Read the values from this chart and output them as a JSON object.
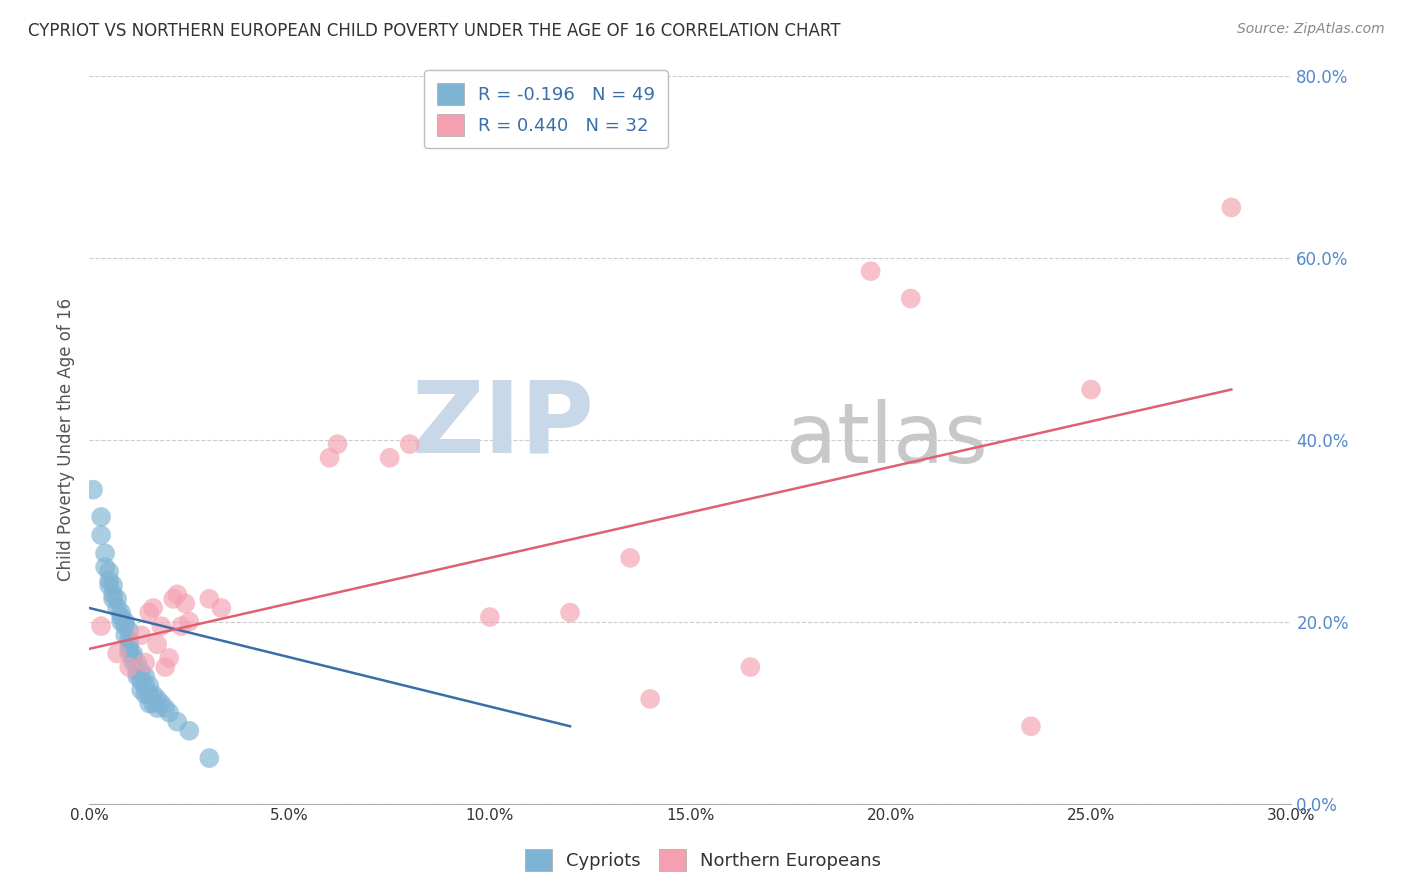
{
  "title": "CYPRIOT VS NORTHERN EUROPEAN CHILD POVERTY UNDER THE AGE OF 16 CORRELATION CHART",
  "source": "Source: ZipAtlas.com",
  "ylabel": "Child Poverty Under the Age of 16",
  "xlim": [
    0.0,
    0.3
  ],
  "ylim": [
    0.0,
    0.8
  ],
  "xticks": [
    0.0,
    0.05,
    0.1,
    0.15,
    0.2,
    0.25,
    0.3
  ],
  "yticks": [
    0.0,
    0.2,
    0.4,
    0.6,
    0.8
  ],
  "xtick_labels": [
    "0.0%",
    "5.0%",
    "10.0%",
    "15.0%",
    "20.0%",
    "25.0%",
    "30.0%"
  ],
  "ytick_labels": [
    "0.0%",
    "20.0%",
    "40.0%",
    "60.0%",
    "80.0%"
  ],
  "legend_entries": [
    {
      "label": "R = -0.196   N = 49",
      "color": "#aac4e0"
    },
    {
      "label": "R = 0.440   N = 32",
      "color": "#f4a8b8"
    }
  ],
  "blue_scatter": [
    [
      0.001,
      0.345
    ],
    [
      0.003,
      0.315
    ],
    [
      0.003,
      0.295
    ],
    [
      0.004,
      0.275
    ],
    [
      0.004,
      0.26
    ],
    [
      0.005,
      0.255
    ],
    [
      0.005,
      0.245
    ],
    [
      0.005,
      0.24
    ],
    [
      0.006,
      0.24
    ],
    [
      0.006,
      0.23
    ],
    [
      0.006,
      0.225
    ],
    [
      0.007,
      0.225
    ],
    [
      0.007,
      0.215
    ],
    [
      0.008,
      0.21
    ],
    [
      0.008,
      0.205
    ],
    [
      0.008,
      0.2
    ],
    [
      0.009,
      0.2
    ],
    [
      0.009,
      0.195
    ],
    [
      0.009,
      0.185
    ],
    [
      0.01,
      0.19
    ],
    [
      0.01,
      0.18
    ],
    [
      0.01,
      0.175
    ],
    [
      0.01,
      0.17
    ],
    [
      0.01,
      0.165
    ],
    [
      0.011,
      0.165
    ],
    [
      0.011,
      0.16
    ],
    [
      0.011,
      0.155
    ],
    [
      0.012,
      0.155
    ],
    [
      0.012,
      0.145
    ],
    [
      0.012,
      0.14
    ],
    [
      0.013,
      0.145
    ],
    [
      0.013,
      0.135
    ],
    [
      0.013,
      0.125
    ],
    [
      0.014,
      0.14
    ],
    [
      0.014,
      0.13
    ],
    [
      0.014,
      0.12
    ],
    [
      0.015,
      0.13
    ],
    [
      0.015,
      0.12
    ],
    [
      0.015,
      0.11
    ],
    [
      0.016,
      0.12
    ],
    [
      0.016,
      0.11
    ],
    [
      0.017,
      0.115
    ],
    [
      0.017,
      0.105
    ],
    [
      0.018,
      0.11
    ],
    [
      0.019,
      0.105
    ],
    [
      0.02,
      0.1
    ],
    [
      0.022,
      0.09
    ],
    [
      0.025,
      0.08
    ],
    [
      0.03,
      0.05
    ]
  ],
  "pink_scatter": [
    [
      0.003,
      0.195
    ],
    [
      0.007,
      0.165
    ],
    [
      0.01,
      0.15
    ],
    [
      0.013,
      0.185
    ],
    [
      0.014,
      0.155
    ],
    [
      0.015,
      0.21
    ],
    [
      0.016,
      0.215
    ],
    [
      0.017,
      0.175
    ],
    [
      0.018,
      0.195
    ],
    [
      0.019,
      0.15
    ],
    [
      0.02,
      0.16
    ],
    [
      0.021,
      0.225
    ],
    [
      0.022,
      0.23
    ],
    [
      0.023,
      0.195
    ],
    [
      0.024,
      0.22
    ],
    [
      0.025,
      0.2
    ],
    [
      0.03,
      0.225
    ],
    [
      0.033,
      0.215
    ],
    [
      0.06,
      0.38
    ],
    [
      0.062,
      0.395
    ],
    [
      0.075,
      0.38
    ],
    [
      0.08,
      0.395
    ],
    [
      0.1,
      0.205
    ],
    [
      0.12,
      0.21
    ],
    [
      0.135,
      0.27
    ],
    [
      0.14,
      0.115
    ],
    [
      0.165,
      0.15
    ],
    [
      0.195,
      0.585
    ],
    [
      0.205,
      0.555
    ],
    [
      0.235,
      0.085
    ],
    [
      0.25,
      0.455
    ],
    [
      0.285,
      0.655
    ]
  ],
  "blue_line": [
    [
      0.0,
      0.215
    ],
    [
      0.12,
      0.085
    ]
  ],
  "pink_line": [
    [
      0.0,
      0.17
    ],
    [
      0.285,
      0.455
    ]
  ],
  "blue_scatter_color": "#7fb3d3",
  "pink_scatter_color": "#f4a0b0",
  "blue_line_color": "#3a6ea8",
  "pink_line_color": "#e06070",
  "watermark_zip": "ZIP",
  "watermark_atlas": "atlas",
  "watermark_color_zip": "#c8d8e8",
  "watermark_color_atlas": "#c8c8c8",
  "background_color": "#ffffff",
  "grid_color": "#cccccc",
  "title_color": "#333333",
  "axis_label_color": "#555555",
  "tick_label_color_right": "#5588cc",
  "tick_label_color_bottom": "#333333"
}
